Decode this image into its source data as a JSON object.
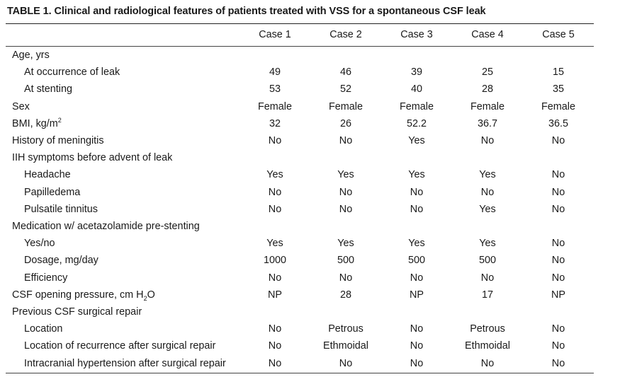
{
  "caption": "TABLE 1. Clinical and radiological features of patients treated with VSS for a spontaneous CSF leak",
  "columns": [
    "Case 1",
    "Case 2",
    "Case 3",
    "Case 4",
    "Case 5"
  ],
  "rows": [
    {
      "label": "Age, yrs",
      "level": 0,
      "values": [
        "",
        "",
        "",
        "",
        ""
      ]
    },
    {
      "label": "At occurrence of leak",
      "level": 1,
      "values": [
        "49",
        "46",
        "39",
        "25",
        "15"
      ]
    },
    {
      "label": "At stenting",
      "level": 1,
      "values": [
        "53",
        "52",
        "40",
        "28",
        "35"
      ]
    },
    {
      "label": "Sex",
      "level": 0,
      "values": [
        "Female",
        "Female",
        "Female",
        "Female",
        "Female"
      ]
    },
    {
      "label": "BMI, kg/m",
      "label_sup": "2",
      "level": 0,
      "values": [
        "32",
        "26",
        "52.2",
        "36.7",
        "36.5"
      ]
    },
    {
      "label": "History of meningitis",
      "level": 0,
      "values": [
        "No",
        "No",
        "Yes",
        "No",
        "No"
      ]
    },
    {
      "label": "IIH symptoms before advent of leak",
      "level": 0,
      "values": [
        "",
        "",
        "",
        "",
        ""
      ]
    },
    {
      "label": "Headache",
      "level": 1,
      "values": [
        "Yes",
        "Yes",
        "Yes",
        "Yes",
        "No"
      ]
    },
    {
      "label": "Papilledema",
      "level": 1,
      "values": [
        "No",
        "No",
        "No",
        "No",
        "No"
      ]
    },
    {
      "label": "Pulsatile tinnitus",
      "level": 1,
      "values": [
        "No",
        "No",
        "No",
        "Yes",
        "No"
      ]
    },
    {
      "label": "Medication w/ acetazolamide pre-stenting",
      "level": 0,
      "values": [
        "",
        "",
        "",
        "",
        ""
      ]
    },
    {
      "label": "Yes/no",
      "level": 1,
      "values": [
        "Yes",
        "Yes",
        "Yes",
        "Yes",
        "No"
      ]
    },
    {
      "label": "Dosage, mg/day",
      "level": 1,
      "values": [
        "1000",
        "500",
        "500",
        "500",
        "No"
      ]
    },
    {
      "label": "Efficiency",
      "level": 1,
      "values": [
        "No",
        "No",
        "No",
        "No",
        "No"
      ]
    },
    {
      "label": "CSF opening pressure, cm H",
      "label_sub": "2",
      "label_after": "O",
      "level": 0,
      "values": [
        "NP",
        "28",
        "NP",
        "17",
        "NP"
      ]
    },
    {
      "label": "Previous CSF surgical repair",
      "level": 0,
      "values": [
        "",
        "",
        "",
        "",
        ""
      ]
    },
    {
      "label": "Location",
      "level": 1,
      "values": [
        "No",
        "Petrous",
        "No",
        "Petrous",
        "No"
      ]
    },
    {
      "label": "Location of recurrence after surgical repair",
      "level": 1,
      "values": [
        "No",
        "Ethmoidal",
        "No",
        "Ethmoidal",
        "No"
      ]
    },
    {
      "label": "Intracranial hypertension after surgical repair",
      "level": 1,
      "values": [
        "No",
        "No",
        "No",
        "No",
        "No"
      ]
    }
  ]
}
